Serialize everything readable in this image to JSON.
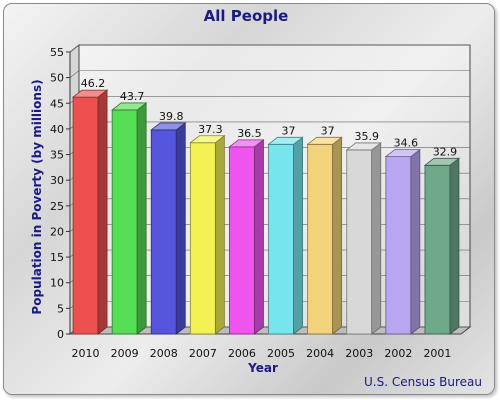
{
  "chart_data": {
    "type": "bar",
    "title": "All People",
    "xlabel": "Year",
    "ylabel": "Population in Poverty (by millions)",
    "source": "U.S. Census Bureau",
    "categories": [
      "2010",
      "2009",
      "2008",
      "2007",
      "2006",
      "2005",
      "2004",
      "2003",
      "2002",
      "2001"
    ],
    "values": [
      46.2,
      43.7,
      39.8,
      37.3,
      36.5,
      37,
      37,
      35.9,
      34.6,
      32.9
    ],
    "value_labels": [
      "46.2",
      "43.7",
      "39.8",
      "37.3",
      "36.5",
      "37",
      "37",
      "35.9",
      "34.6",
      "32.9"
    ],
    "yticks": [
      0,
      5,
      10,
      15,
      20,
      25,
      30,
      35,
      40,
      45,
      50,
      55
    ],
    "ylim": [
      0,
      55
    ],
    "grid": true,
    "style": "3d",
    "bar_colors": [
      "#ee5050",
      "#55dd55",
      "#5555dd",
      "#f2f255",
      "#ee55ee",
      "#77e6ec",
      "#f2d27a",
      "#d8d8d8",
      "#b9a5f0",
      "#6fa98a"
    ]
  }
}
